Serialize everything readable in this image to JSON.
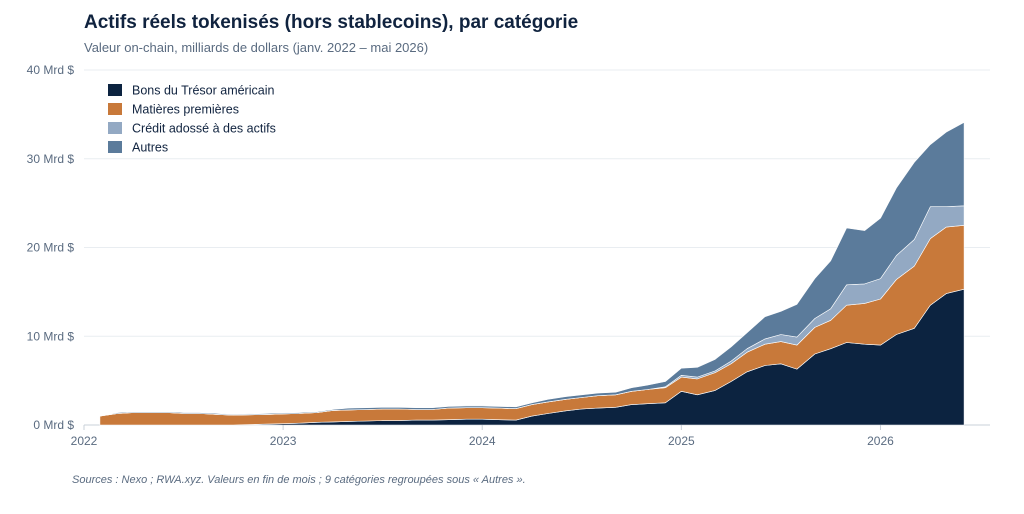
{
  "chart_data": {
    "type": "area",
    "stacked": true,
    "title": "Actifs réels tokenisés (hors stablecoins), par catégorie",
    "subtitle": "Valeur on-chain, milliards de dollars (janv. 2022 – mai 2026)",
    "source": "Sources : Nexo ; RWA.xyz. Valeurs en fin de mois ; 9 catégories regroupées sous « Autres ».",
    "xlim": [
      2022.0,
      2026.55
    ],
    "ylim": [
      0,
      40
    ],
    "x_ticks": [
      {
        "value": 2022,
        "label": "2022"
      },
      {
        "value": 2023,
        "label": "2023"
      },
      {
        "value": 2024,
        "label": "2024"
      },
      {
        "value": 2025,
        "label": "2025"
      },
      {
        "value": 2026,
        "label": "2026"
      }
    ],
    "y_ticks": [
      {
        "value": 0,
        "label": "0 Mrd $"
      },
      {
        "value": 10,
        "label": "10 Mrd $"
      },
      {
        "value": 20,
        "label": "20 Mrd $"
      },
      {
        "value": 30,
        "label": "30 Mrd $"
      },
      {
        "value": 40,
        "label": "40 Mrd $"
      }
    ],
    "grid": true,
    "legend_position": "top-left",
    "x": [
      2022.08,
      2022.17,
      2022.25,
      2022.33,
      2022.42,
      2022.5,
      2022.58,
      2022.67,
      2022.75,
      2022.83,
      2022.92,
      2023.0,
      2023.08,
      2023.17,
      2023.25,
      2023.33,
      2023.42,
      2023.5,
      2023.58,
      2023.67,
      2023.75,
      2023.83,
      2023.92,
      2024.0,
      2024.08,
      2024.17,
      2024.25,
      2024.33,
      2024.42,
      2024.5,
      2024.58,
      2024.67,
      2024.75,
      2024.83,
      2024.92,
      2025.0,
      2025.08,
      2025.17,
      2025.25,
      2025.33,
      2025.42,
      2025.5,
      2025.58,
      2025.67,
      2025.75,
      2025.83,
      2025.92,
      2026.0,
      2026.08,
      2026.17,
      2026.25,
      2026.33,
      2026.42
    ],
    "series": [
      {
        "name": "Bons du Trésor américain",
        "color": "#0c2340",
        "values": [
          0.0,
          0.0,
          0.0,
          0.0,
          0.0,
          0.0,
          0.0,
          0.0,
          0.0,
          0.05,
          0.1,
          0.15,
          0.2,
          0.3,
          0.35,
          0.4,
          0.45,
          0.5,
          0.5,
          0.55,
          0.55,
          0.6,
          0.65,
          0.65,
          0.6,
          0.55,
          1.0,
          1.3,
          1.6,
          1.8,
          1.9,
          2.0,
          2.3,
          2.4,
          2.5,
          3.8,
          3.4,
          3.9,
          4.9,
          6.0,
          6.7,
          6.9,
          6.3,
          8.0,
          8.6,
          9.3,
          9.1,
          9.0,
          10.2,
          10.9,
          13.5,
          14.8,
          15.3
        ]
      },
      {
        "name": "Matières premières",
        "color": "#c8793a",
        "values": [
          1.0,
          1.3,
          1.4,
          1.4,
          1.4,
          1.3,
          1.3,
          1.2,
          1.1,
          1.1,
          1.1,
          1.1,
          1.1,
          1.1,
          1.3,
          1.3,
          1.3,
          1.3,
          1.3,
          1.2,
          1.2,
          1.3,
          1.3,
          1.3,
          1.3,
          1.3,
          1.3,
          1.3,
          1.3,
          1.3,
          1.4,
          1.4,
          1.5,
          1.6,
          1.7,
          1.6,
          1.8,
          2.0,
          2.0,
          2.2,
          2.4,
          2.5,
          2.7,
          3.0,
          3.2,
          4.2,
          4.6,
          5.2,
          6.2,
          7.0,
          7.5,
          7.5,
          7.2
        ]
      },
      {
        "name": "Crédit adossé à des actifs",
        "color": "#93a9c3",
        "values": [
          0.0,
          0.0,
          0.0,
          0.0,
          0.0,
          0.0,
          0.0,
          0.0,
          0.0,
          0.0,
          0.0,
          0.0,
          0.0,
          0.0,
          0.0,
          0.0,
          0.0,
          0.0,
          0.0,
          0.0,
          0.0,
          0.0,
          0.0,
          0.0,
          0.0,
          0.0,
          0.0,
          0.0,
          0.0,
          0.0,
          0.0,
          0.0,
          0.0,
          0.0,
          0.1,
          0.2,
          0.2,
          0.2,
          0.3,
          0.4,
          0.6,
          0.8,
          0.9,
          1.0,
          1.3,
          2.3,
          2.2,
          2.3,
          2.7,
          3.0,
          3.6,
          2.3,
          2.2
        ]
      },
      {
        "name": "Autres",
        "color": "#5b7b9b",
        "values": [
          0.0,
          0.1,
          0.1,
          0.1,
          0.1,
          0.1,
          0.1,
          0.1,
          0.1,
          0.1,
          0.1,
          0.1,
          0.1,
          0.1,
          0.1,
          0.2,
          0.2,
          0.2,
          0.2,
          0.2,
          0.2,
          0.2,
          0.2,
          0.2,
          0.2,
          0.2,
          0.2,
          0.3,
          0.3,
          0.3,
          0.3,
          0.3,
          0.4,
          0.5,
          0.6,
          0.8,
          1.1,
          1.3,
          1.6,
          1.8,
          2.5,
          2.6,
          3.7,
          4.5,
          5.4,
          6.4,
          6.0,
          6.8,
          7.6,
          8.7,
          7.0,
          8.4,
          9.4
        ]
      }
    ]
  }
}
